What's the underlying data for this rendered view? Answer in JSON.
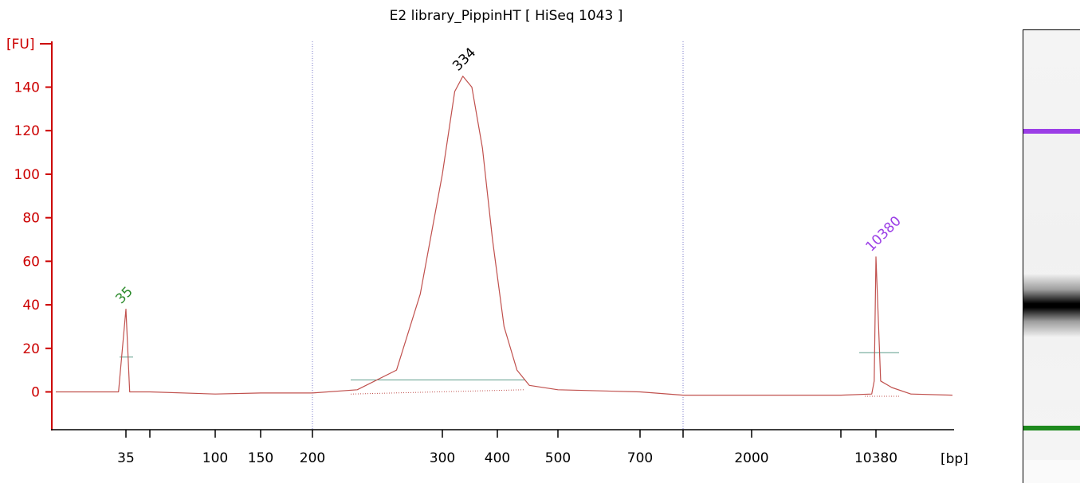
{
  "chart_data": {
    "type": "line",
    "title": "E2 library_PippinHT   [ HiSeq 1043 ]",
    "ylabel": "[FU]",
    "xlabel": "[bp]",
    "ylim": [
      -17,
      155
    ],
    "y_ticks": [
      0,
      20,
      40,
      60,
      80,
      100,
      120,
      140
    ],
    "x_tick_labels": [
      "35",
      "100",
      "150",
      "200",
      "300",
      "400",
      "500",
      "700",
      "2000",
      "10380"
    ],
    "x_scale": "log-ladder",
    "peaks": [
      {
        "label": "35",
        "size_bp": 35,
        "height_fu": 38,
        "color": "#2a8a2a",
        "role": "lower marker"
      },
      {
        "label": "334",
        "size_bp": 334,
        "height_fu": 145,
        "color": "#000000",
        "role": "sample"
      },
      {
        "label": "10380",
        "size_bp": 10380,
        "height_fu": 62,
        "color": "#9b3ee6",
        "role": "upper marker"
      }
    ],
    "series": [
      {
        "values_x_bp": [
          20,
          33,
          35,
          37,
          50,
          100,
          150,
          200,
          230,
          260,
          280,
          300,
          320,
          334,
          350,
          370,
          390,
          410,
          430,
          450,
          500,
          700,
          1000,
          2000,
          5000,
          9500,
          10000,
          10380,
          10700,
          11500,
          13000,
          17000
        ],
        "values_y_fu": [
          0,
          0,
          38,
          0,
          0,
          -1,
          -0.5,
          -0.5,
          1,
          10,
          45,
          100,
          138,
          145,
          140,
          112,
          70,
          30,
          10,
          3,
          1,
          0,
          -1.5,
          -1.5,
          -1.5,
          -1,
          5,
          62,
          5,
          2,
          -1,
          -1.5
        ]
      }
    ],
    "colors": {
      "axis": "#cc0000",
      "trace": "#c0504d",
      "baseline": "#5f9e8c",
      "grid_lines": "#7a7ac8",
      "upper_marker": "#9b3ee6",
      "lower_marker": "#2a8a2a"
    },
    "gel": {
      "upper_marker_color": "#9b3ee6",
      "lower_marker_color": "#1e8a1e",
      "band_color": "#000000"
    }
  }
}
